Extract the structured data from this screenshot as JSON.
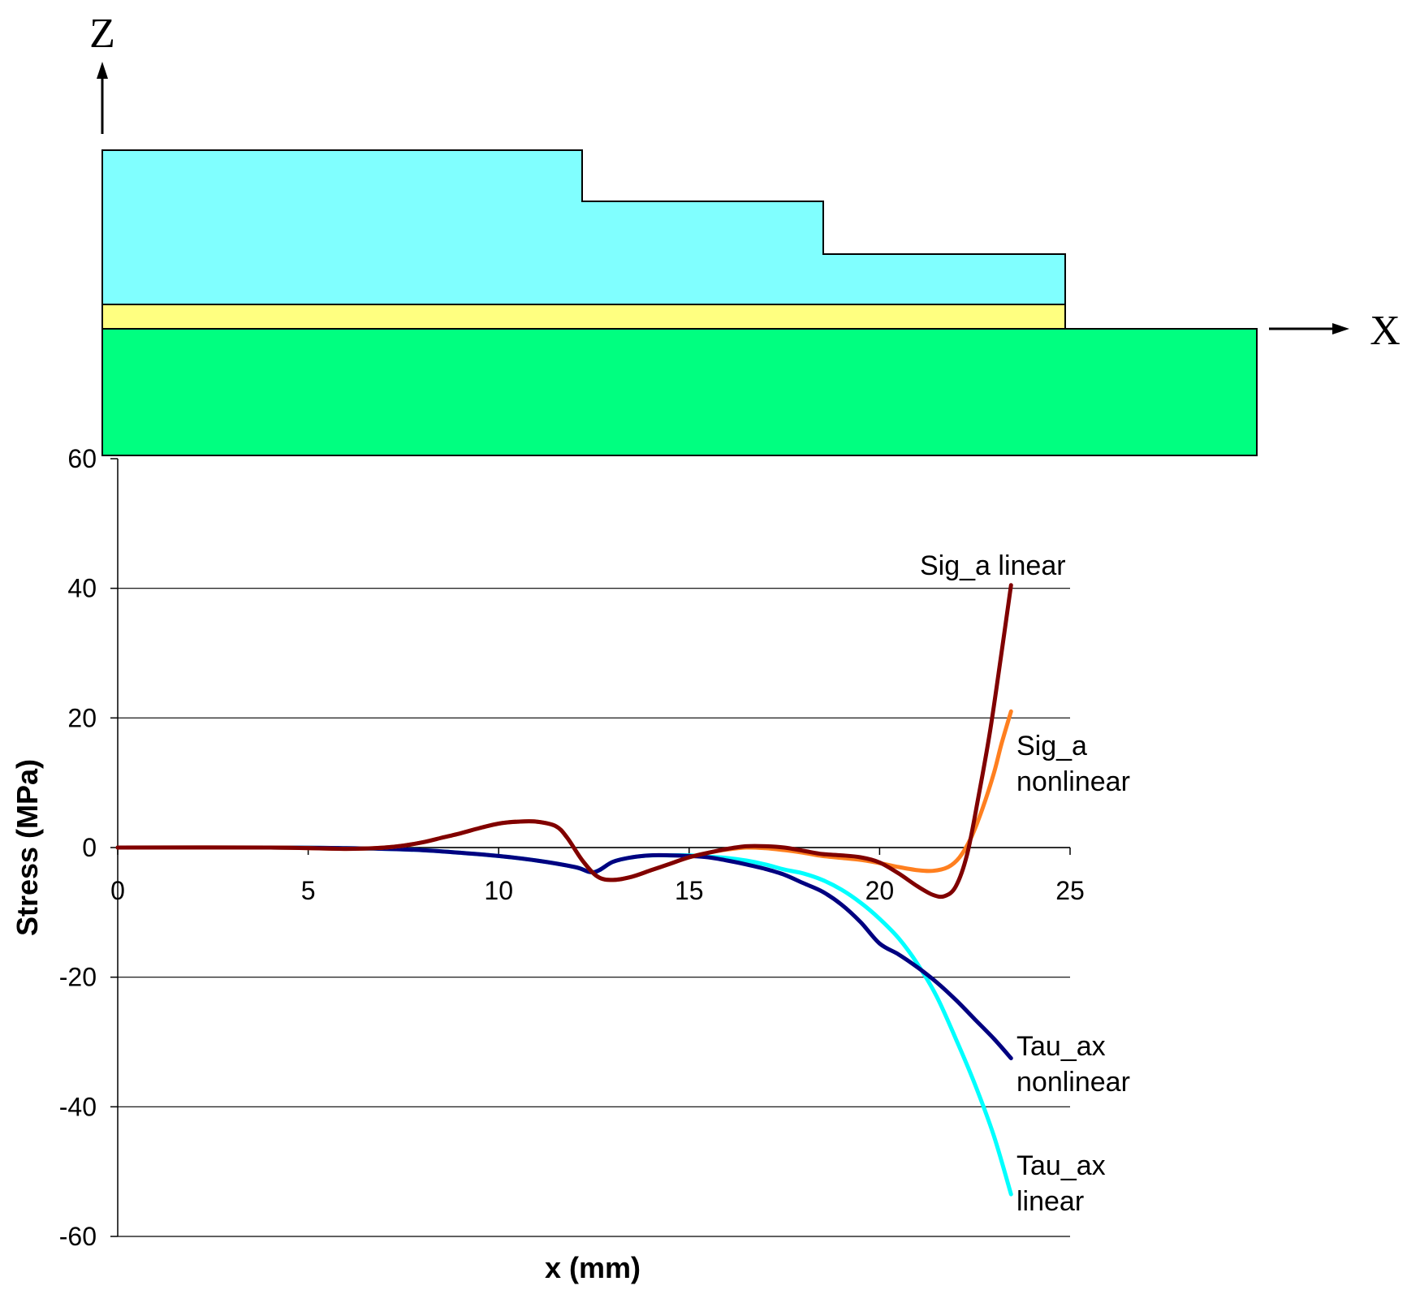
{
  "diagram": {
    "axis_z_label": "Z",
    "axis_x_label": "X",
    "colors": {
      "adherend_top": "#80FFFF",
      "adhesive": "#FFFF80",
      "substrate": "#00FF80",
      "outline": "#000000"
    }
  },
  "chart_data": {
    "type": "line",
    "title": "",
    "xlabel": "x (mm)",
    "ylabel": "Stress (MPa)",
    "xlim": [
      0,
      25
    ],
    "ylim": [
      -60,
      60
    ],
    "x_ticks": [
      0,
      5,
      10,
      15,
      20,
      25
    ],
    "y_ticks": [
      -60,
      -40,
      -20,
      0,
      20,
      40,
      60
    ],
    "gridlines": "horizontal",
    "legend": "inline labels at curve ends",
    "series": [
      {
        "name": "Sig_a linear",
        "label_lines": [
          "Sig_a linear"
        ],
        "color": "#800000",
        "x": [
          0,
          4,
          6,
          7,
          7.5,
          8,
          8.5,
          9,
          9.5,
          10,
          10.5,
          11,
          11.5,
          11.8,
          12.2,
          12.6,
          13,
          13.5,
          14,
          14.5,
          15,
          15.5,
          16,
          16.5,
          17,
          17.5,
          18,
          18.5,
          19,
          19.5,
          20,
          20.5,
          21,
          21.4,
          21.7,
          22,
          22.3,
          22.6,
          22.9,
          23.2,
          23.45
        ],
        "y": [
          0,
          0,
          -0.2,
          0,
          0.3,
          0.8,
          1.5,
          2.2,
          3.0,
          3.7,
          4.0,
          4.0,
          3.3,
          1.5,
          -2.0,
          -4.5,
          -5.0,
          -4.5,
          -3.5,
          -2.5,
          -1.5,
          -0.8,
          -0.2,
          0.2,
          0.2,
          0.0,
          -0.5,
          -1.0,
          -1.2,
          -1.5,
          -2.3,
          -4.0,
          -6.0,
          -7.3,
          -7.5,
          -6.0,
          -1.0,
          8.0,
          18.0,
          30.0,
          40.5
        ]
      },
      {
        "name": "Sig_a nonlinear",
        "label_lines": [
          "Sig_a",
          "nonlinear"
        ],
        "color": "#FF7F1F",
        "x": [
          0,
          4,
          6,
          7,
          7.5,
          8,
          8.5,
          9,
          9.5,
          10,
          10.5,
          11,
          11.5,
          11.8,
          12.2,
          12.6,
          13,
          13.5,
          14,
          14.5,
          15,
          15.5,
          16,
          16.5,
          17,
          17.5,
          18,
          18.5,
          19,
          19.5,
          20,
          20.5,
          21,
          21.4,
          21.8,
          22.1,
          22.4,
          22.7,
          23,
          23.2,
          23.45
        ],
        "y": [
          0,
          0,
          -0.2,
          0,
          0.3,
          0.8,
          1.5,
          2.2,
          3.0,
          3.7,
          4.0,
          4.0,
          3.3,
          1.5,
          -2.0,
          -4.5,
          -5.0,
          -4.5,
          -3.5,
          -2.5,
          -1.5,
          -0.8,
          -0.3,
          0.0,
          -0.1,
          -0.4,
          -0.8,
          -1.3,
          -1.6,
          -1.9,
          -2.4,
          -3.0,
          -3.5,
          -3.6,
          -3.0,
          -1.5,
          1.5,
          6.0,
          11.5,
          16.0,
          21.0
        ]
      },
      {
        "name": "Tau_ax nonlinear",
        "label_lines": [
          "Tau_ax",
          "nonlinear"
        ],
        "color": "#000080",
        "x": [
          0,
          4,
          6,
          7,
          8,
          9,
          10,
          11,
          12,
          12.5,
          13,
          13.5,
          14,
          14.5,
          15,
          15.5,
          16,
          16.5,
          17,
          17.5,
          18,
          18.5,
          19,
          19.5,
          20,
          20.5,
          21,
          21.5,
          22,
          22.5,
          23,
          23.45
        ],
        "y": [
          0,
          0,
          -0.1,
          -0.2,
          -0.4,
          -0.8,
          -1.3,
          -2.0,
          -3.0,
          -3.8,
          -2.2,
          -1.5,
          -1.2,
          -1.2,
          -1.3,
          -1.5,
          -2.0,
          -2.6,
          -3.3,
          -4.2,
          -5.5,
          -6.8,
          -8.8,
          -11.5,
          -14.8,
          -16.5,
          -18.5,
          -20.8,
          -23.5,
          -26.5,
          -29.5,
          -32.5
        ]
      },
      {
        "name": "Tau_ax linear",
        "label_lines": [
          "Tau_ax",
          "linear"
        ],
        "color": "#00FFFF",
        "x": [
          0,
          4,
          6,
          7,
          8,
          9,
          10,
          11,
          12,
          12.5,
          13,
          13.5,
          14,
          14.5,
          15,
          15.5,
          16,
          16.5,
          17,
          17.5,
          18,
          18.5,
          19,
          19.5,
          20,
          20.5,
          21,
          21.5,
          22,
          22.5,
          23,
          23.45
        ],
        "y": [
          0,
          0,
          -0.1,
          -0.2,
          -0.4,
          -0.8,
          -1.3,
          -2.0,
          -3.0,
          -3.8,
          -2.2,
          -1.5,
          -1.2,
          -1.2,
          -1.2,
          -1.4,
          -1.6,
          -2.0,
          -2.6,
          -3.4,
          -4.0,
          -5.0,
          -6.5,
          -8.5,
          -11.0,
          -14.0,
          -18.0,
          -23.0,
          -29.5,
          -36.5,
          -44.5,
          -53.5
        ]
      }
    ]
  }
}
